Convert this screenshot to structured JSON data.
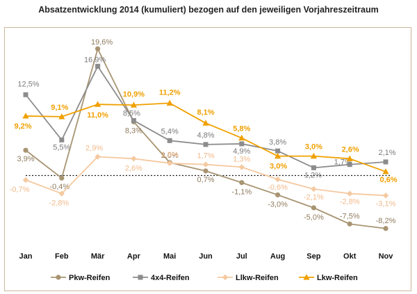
{
  "chart_data": {
    "type": "line",
    "title": "Absatzentwicklung 2014 (kumuliert) bezogen auf den jeweiligen Vorjahreszeitraum",
    "xlabel": "",
    "ylabel": "",
    "ylim": [
      -10,
      22
    ],
    "zero_line": "dotted",
    "legend_position": "bottom",
    "categories": [
      "Jan",
      "Feb",
      "Mär",
      "Apr",
      "Mai",
      "Jun",
      "Jul",
      "Aug",
      "Sep",
      "Okt",
      "Nov"
    ],
    "series": [
      {
        "name": "Pkw-Reifen",
        "color": "#a89472",
        "marker": "circle",
        "values": [
          3.9,
          -0.4,
          19.6,
          8.3,
          2.0,
          0.7,
          -1.1,
          -3.0,
          -5.0,
          -7.5,
          -8.2
        ],
        "labels": [
          "3,9%",
          "-0,4%",
          "19,6%",
          "8,3%",
          "2,0%",
          "0,7%",
          "-1,1%",
          "-3,0%",
          "-5,0%",
          "-7,5%",
          "-8,2%"
        ]
      },
      {
        "name": "4x4-Reifen",
        "color": "#8c8c8c",
        "marker": "square",
        "values": [
          12.5,
          5.5,
          16.9,
          8.5,
          5.4,
          4.8,
          4.9,
          3.8,
          1.2,
          1.7,
          2.1
        ],
        "labels": [
          "12,5%",
          "5,5%",
          "16,9%",
          "8,5%",
          "5,4%",
          "4,8%",
          "4,9%",
          "3,8%",
          "1,2%",
          "1,7%",
          "2,1%"
        ]
      },
      {
        "name": "Llkw-Reifen",
        "color": "#f5c9a0",
        "marker": "diamond",
        "values": [
          -0.7,
          -2.8,
          2.9,
          2.6,
          1.9,
          1.7,
          1.3,
          -0.6,
          -2.1,
          -2.8,
          -3.1
        ],
        "labels": [
          "-0,7%",
          "-2,8%",
          "2,9%",
          "2,6%",
          "1,9%",
          "1,7%",
          "1,3%",
          "-0,6%",
          "-2,1%",
          "-2,8%",
          "-3,1%"
        ]
      },
      {
        "name": "Lkw-Reifen",
        "color": "#f0a000",
        "marker": "triangle",
        "values": [
          9.2,
          9.1,
          11.0,
          10.9,
          11.2,
          8.1,
          5.8,
          3.0,
          3.0,
          2.6,
          0.6
        ],
        "labels": [
          "9,2%",
          "9,1%",
          "11,0%",
          "10,9%",
          "11,2%",
          "8,1%",
          "5,8%",
          "3,0%",
          "3,0%",
          "2,6%",
          "0,6%"
        ]
      }
    ]
  }
}
